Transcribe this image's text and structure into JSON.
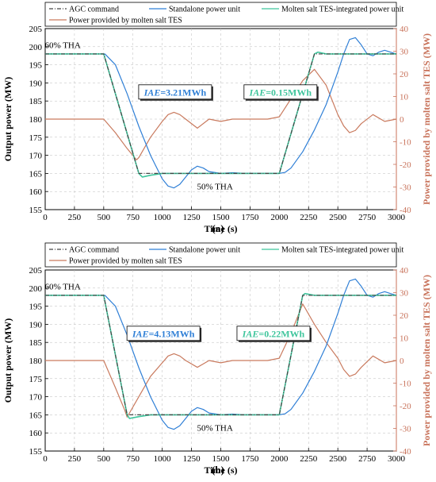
{
  "colors": {
    "agc": "#444444",
    "standalone": "#2f7fd6",
    "integrated": "#3ec59c",
    "tes": "#c97a5e",
    "right_axis": "#c8725a"
  },
  "chart_data": [
    {
      "type": "line",
      "subfigure_label": "(a)",
      "xlabel": "Time (s)",
      "ylabel": "Output power (MW)",
      "ylabel_right": "Power provided by molten salt TES (MW)",
      "xlim": [
        0,
        3000
      ],
      "ylim": [
        155,
        205
      ],
      "ylim_right": [
        -40,
        40
      ],
      "xticks": [
        0,
        250,
        500,
        750,
        1000,
        1250,
        1500,
        1750,
        2000,
        2250,
        2500,
        2750,
        3000
      ],
      "yticks": [
        155,
        160,
        165,
        170,
        175,
        180,
        185,
        190,
        195,
        200,
        205
      ],
      "yticks_right": [
        -40,
        -30,
        -20,
        -10,
        0,
        10,
        20,
        30,
        40
      ],
      "legend": "top",
      "series": [
        {
          "name": "AGC command",
          "axis": "left",
          "style": "dashdot",
          "color_key": "agc",
          "x": [
            0,
            500,
            800,
            2000,
            2300,
            3000
          ],
          "y": [
            198,
            198,
            165,
            165,
            198,
            198
          ]
        },
        {
          "name": "Standalone power unit",
          "axis": "left",
          "style": "solid",
          "color_key": "standalone",
          "x": [
            0,
            510,
            600,
            700,
            800,
            900,
            1000,
            1050,
            1100,
            1150,
            1200,
            1250,
            1300,
            1350,
            1400,
            1500,
            1600,
            1700,
            2000,
            2050,
            2100,
            2200,
            2300,
            2400,
            2500,
            2550,
            2600,
            2650,
            2700,
            2750,
            2800,
            2850,
            2900,
            2950,
            3000
          ],
          "y": [
            198,
            198,
            195,
            187,
            178,
            170,
            163.5,
            161.5,
            161,
            162,
            164,
            166,
            167,
            166.5,
            165.5,
            165,
            165.2,
            165,
            165,
            165.3,
            166.5,
            171,
            177,
            184,
            193,
            198,
            202,
            202.5,
            200.5,
            198,
            197.5,
            198.5,
            199,
            198.5,
            198
          ]
        },
        {
          "name": "Molten salt TES-integrated power unit",
          "axis": "left",
          "style": "solid",
          "color_key": "integrated",
          "x": [
            0,
            500,
            800,
            830,
            900,
            1000,
            1500,
            2000,
            2300,
            2330,
            2400,
            3000
          ],
          "y": [
            198,
            198,
            165,
            164,
            164.5,
            165,
            165,
            165,
            198,
            198.5,
            198,
            198
          ]
        },
        {
          "name": "Power provided by molten salt TES",
          "axis": "right",
          "style": "solid",
          "color_key": "tes",
          "x": [
            0,
            500,
            600,
            700,
            780,
            800,
            900,
            1000,
            1050,
            1100,
            1150,
            1200,
            1300,
            1400,
            1500,
            1600,
            1700,
            1800,
            1900,
            2000,
            2100,
            2200,
            2300,
            2400,
            2500,
            2550,
            2600,
            2650,
            2700,
            2800,
            2900,
            3000
          ],
          "y": [
            0,
            0,
            -6,
            -13,
            -18,
            -17,
            -8,
            -1,
            2,
            3,
            2,
            0,
            -4,
            0,
            -1,
            0,
            0,
            0,
            0,
            1,
            9,
            17,
            22,
            15,
            2,
            -3,
            -6,
            -5,
            -2,
            2,
            -1,
            0
          ]
        }
      ],
      "annotations": [
        {
          "text": "60% THA",
          "x": 150,
          "y": 200.5
        },
        {
          "text": "50% THA",
          "x": 1450,
          "y": 161.5
        }
      ],
      "iae_boxes": [
        {
          "prefix": "IAE",
          "value": "=3.21MWh",
          "color_key": "standalone",
          "x": 1110,
          "y": 187.5
        },
        {
          "prefix": "IAE",
          "value": "=0.15MWh",
          "color_key": "integrated",
          "x": 2010,
          "y": 187.5
        }
      ]
    },
    {
      "type": "line",
      "subfigure_label": "(b)",
      "xlabel": "Time (s)",
      "ylabel": "Output power (MW)",
      "ylabel_right": "Power provided by molten salt TES (MW)",
      "xlim": [
        0,
        3000
      ],
      "ylim": [
        155,
        205
      ],
      "ylim_right": [
        -40,
        40
      ],
      "xticks": [
        0,
        250,
        500,
        750,
        1000,
        1250,
        1500,
        1750,
        2000,
        2250,
        2500,
        2750,
        3000
      ],
      "yticks": [
        155,
        160,
        165,
        170,
        175,
        180,
        185,
        190,
        195,
        200,
        205
      ],
      "yticks_right": [
        -40,
        -30,
        -20,
        -10,
        0,
        10,
        20,
        30,
        40
      ],
      "legend": "top",
      "series": [
        {
          "name": "AGC command",
          "axis": "left",
          "style": "dashdot",
          "color_key": "agc",
          "x": [
            0,
            500,
            700,
            2000,
            2200,
            3000
          ],
          "y": [
            198,
            198,
            165,
            165,
            198,
            198
          ]
        },
        {
          "name": "Standalone power unit",
          "axis": "left",
          "style": "solid",
          "color_key": "standalone",
          "x": [
            0,
            510,
            600,
            700,
            800,
            900,
            1000,
            1050,
            1100,
            1150,
            1200,
            1250,
            1300,
            1350,
            1400,
            1500,
            1600,
            1700,
            2000,
            2050,
            2100,
            2200,
            2300,
            2400,
            2500,
            2550,
            2600,
            2650,
            2700,
            2750,
            2800,
            2850,
            2900,
            2950,
            3000
          ],
          "y": [
            198,
            198,
            195,
            187,
            178,
            170,
            163.5,
            161.5,
            161,
            162,
            164,
            166,
            167,
            166.5,
            165.5,
            165,
            165.2,
            165,
            165,
            165.3,
            166.5,
            171,
            177,
            184,
            193,
            198,
            202,
            202.5,
            200.5,
            198,
            197.5,
            198.5,
            199,
            198.5,
            198
          ]
        },
        {
          "name": "Molten salt TES-integrated power unit",
          "axis": "left",
          "style": "solid",
          "color_key": "integrated",
          "x": [
            0,
            500,
            700,
            720,
            800,
            900,
            1500,
            2000,
            2200,
            2220,
            2300,
            3000
          ],
          "y": [
            198,
            198,
            165,
            164,
            164.5,
            165,
            165,
            165,
            198,
            198.5,
            198,
            198
          ]
        },
        {
          "name": "Power provided by molten salt TES",
          "axis": "right",
          "style": "solid",
          "color_key": "tes",
          "x": [
            0,
            500,
            600,
            680,
            700,
            800,
            900,
            1000,
            1050,
            1100,
            1150,
            1200,
            1300,
            1400,
            1500,
            1600,
            1700,
            1800,
            1900,
            2000,
            2100,
            2200,
            2300,
            2400,
            2500,
            2550,
            2600,
            2650,
            2700,
            2800,
            2900,
            3000
          ],
          "y": [
            0,
            0,
            -12,
            -22,
            -25,
            -16,
            -7,
            -1,
            2,
            3,
            2,
            0,
            -3,
            0,
            -1,
            0,
            0,
            0,
            0,
            1,
            12,
            25,
            16,
            8,
            1,
            -4,
            -7,
            -6,
            -3,
            2,
            -1,
            0
          ]
        }
      ],
      "annotations": [
        {
          "text": "60% THA",
          "x": 150,
          "y": 200.5
        },
        {
          "text": "50% THA",
          "x": 1450,
          "y": 161.5
        }
      ],
      "iae_boxes": [
        {
          "prefix": "IAE",
          "value": "=4.13MWh",
          "color_key": "standalone",
          "x": 1010,
          "y": 187.5
        },
        {
          "prefix": "IAE",
          "value": "=0.22MWh",
          "color_key": "integrated",
          "x": 1950,
          "y": 187.5
        }
      ]
    }
  ]
}
